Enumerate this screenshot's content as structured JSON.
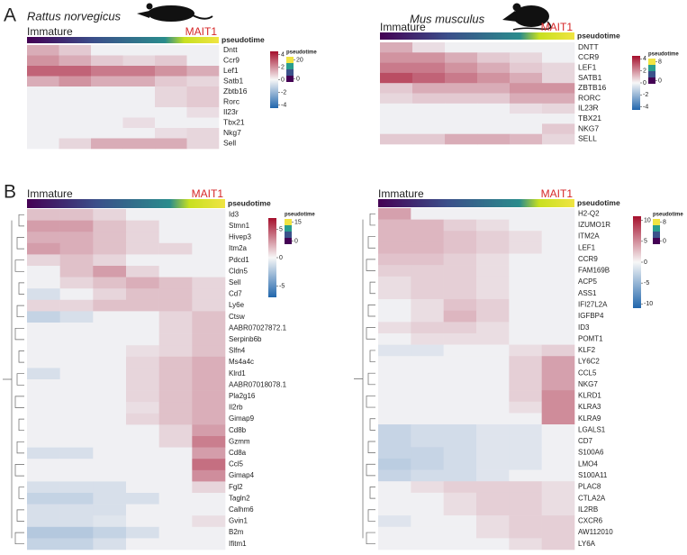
{
  "panel_labels": [
    "A",
    "B"
  ],
  "heatmaps": [
    {
      "species": "Rattus norvegicus",
      "start_label": "Immature",
      "end_label": "MAIT1",
      "pseudotime_label": "pseudotime",
      "genes": [
        "Dntt",
        "Ccr9",
        "Lef1",
        "Satb1",
        "Zbtb16",
        "Rorc",
        "Il23r",
        "Tbx21",
        "Nkg7",
        "Sell"
      ],
      "rows": [
        [
          1,
          0.5,
          0,
          0,
          0,
          0
        ],
        [
          1.5,
          1,
          0.5,
          0.3,
          0.5,
          0
        ],
        [
          2.5,
          2.5,
          2,
          2,
          1.5,
          1
        ],
        [
          1,
          1.5,
          1,
          1,
          0.5,
          0.3
        ],
        [
          0,
          0,
          0,
          0,
          0.3,
          0.5
        ],
        [
          0,
          0,
          0,
          0,
          0.3,
          0.5
        ],
        [
          0,
          0,
          0,
          0,
          0,
          0.2
        ],
        [
          0,
          0,
          0,
          0.2,
          0,
          0
        ],
        [
          0,
          0,
          0,
          0,
          0.2,
          0.3
        ],
        [
          0,
          0.3,
          1,
          1,
          1,
          0.3
        ]
      ],
      "colorbar": {
        "lim": [
          -4.5,
          4.5
        ],
        "ticks": [
          4,
          2,
          0,
          -2,
          -4
        ]
      },
      "pseudotime_legend": {
        "title": "pseudotime",
        "ticks": [
          20,
          0
        ]
      }
    },
    {
      "species": "Mus musculus",
      "start_label": "Immature",
      "end_label": "MAIT1",
      "pseudotime_label": "pseudotime",
      "genes": [
        "DNTT",
        "CCR9",
        "LEF1",
        "SATB1",
        "ZBTB16",
        "RORC",
        "IL23R",
        "TBX21",
        "NKG7",
        "SELL"
      ],
      "rows": [
        [
          1,
          0.2,
          0,
          0,
          0,
          0
        ],
        [
          1.5,
          1.5,
          1,
          0.5,
          0.3,
          0
        ],
        [
          2,
          2,
          1.5,
          1,
          0.5,
          0.3
        ],
        [
          3,
          2.5,
          2,
          1.5,
          1,
          0.3
        ],
        [
          0.5,
          1,
          1,
          1,
          1.5,
          1.5
        ],
        [
          0.3,
          0.5,
          0.5,
          0.5,
          1,
          1
        ],
        [
          0,
          0,
          0,
          0,
          0.2,
          0.3
        ],
        [
          0,
          0,
          0,
          0,
          0,
          0
        ],
        [
          0,
          0,
          0,
          0,
          0,
          0.5
        ],
        [
          0.5,
          0.5,
          1,
          1,
          0.8,
          0.3
        ]
      ],
      "colorbar": {
        "lim": [
          -4.5,
          4.5
        ],
        "ticks": [
          4,
          2,
          0,
          -2,
          -4
        ]
      },
      "pseudotime_legend": {
        "title": "pseudotime",
        "ticks": [
          8,
          0
        ]
      }
    },
    {
      "start_label": "Immature",
      "end_label": "MAIT1",
      "pseudotime_label": "pseudotime",
      "genes": [
        "Id3",
        "Stmn1",
        "Hivep3",
        "Itm2a",
        "Pdcd1",
        "Cldn5",
        "Sell",
        "Cd7",
        "Ly6e",
        "Ctsw",
        "AABR07027872.1",
        "Serpinb6b",
        "Slfn4",
        "Ms4a4c",
        "Klrd1",
        "AABR07018078.1",
        "Pla2g16",
        "Il2rb",
        "Gimap9",
        "Cd8b",
        "Gzmm",
        "Cd8a",
        "Ccl5",
        "Gimap4",
        "Fgl2",
        "Tagln2",
        "Calhm6",
        "Gvin1",
        "B2m",
        "Ifitm1"
      ],
      "rows": [
        [
          1,
          1,
          0.5,
          0,
          0,
          0
        ],
        [
          2,
          2,
          1,
          0.5,
          0,
          0
        ],
        [
          1.5,
          1.5,
          1,
          0.5,
          0,
          0
        ],
        [
          2,
          1.5,
          1,
          0.5,
          0.5,
          0
        ],
        [
          0.5,
          1,
          0.5,
          0,
          0,
          0
        ],
        [
          0,
          1,
          2,
          0.5,
          0,
          0
        ],
        [
          0,
          0.5,
          1,
          1.5,
          1,
          0.5
        ],
        [
          -0.5,
          0,
          0.5,
          1,
          1,
          0.5
        ],
        [
          0.5,
          0.5,
          1,
          1,
          1,
          0.5
        ],
        [
          -1,
          -0.5,
          0,
          0,
          0.5,
          1
        ],
        [
          0,
          0,
          0,
          0,
          0.5,
          1
        ],
        [
          0,
          0,
          0,
          0,
          0.5,
          1
        ],
        [
          0,
          0,
          0,
          0.3,
          0.5,
          1
        ],
        [
          0,
          0,
          0,
          0.5,
          1,
          1.5
        ],
        [
          -0.5,
          0,
          0,
          0.5,
          1,
          1.5
        ],
        [
          0,
          0,
          0,
          0.5,
          1,
          1.5
        ],
        [
          0,
          0,
          0,
          0.5,
          1,
          1.5
        ],
        [
          0,
          0,
          0,
          0.3,
          1,
          1.5
        ],
        [
          0,
          0,
          0,
          0.5,
          1,
          1.5
        ],
        [
          0,
          0,
          0,
          0,
          0.5,
          2
        ],
        [
          0,
          0,
          0,
          0,
          0.5,
          3
        ],
        [
          -0.5,
          -0.5,
          0,
          0,
          0,
          2
        ],
        [
          0,
          0,
          0,
          0,
          0,
          3.5
        ],
        [
          0,
          0,
          0,
          0,
          0,
          2.5
        ],
        [
          -0.5,
          -0.5,
          -0.5,
          0,
          0,
          0.5
        ],
        [
          -1,
          -1,
          -0.5,
          -0.5,
          0,
          0
        ],
        [
          -0.5,
          -0.5,
          -0.5,
          0,
          0,
          0
        ],
        [
          -0.5,
          -0.5,
          -0.3,
          0,
          0,
          0.3
        ],
        [
          -1.5,
          -1.5,
          -1,
          -0.5,
          0,
          0
        ],
        [
          -1,
          -1,
          -0.5,
          0,
          0,
          0
        ]
      ],
      "colorbar": {
        "lim": [
          -7,
          7
        ],
        "ticks": [
          5,
          0,
          -5
        ]
      },
      "pseudotime_legend": {
        "title": "pseudotime",
        "ticks": [
          15,
          0
        ]
      }
    },
    {
      "start_label": "Immature",
      "end_label": "MAIT1",
      "pseudotime_label": "pseudotime",
      "genes": [
        "H2-Q2",
        "IZUMO1R",
        "ITM2A",
        "LEF1",
        "CCR9",
        "FAM169B",
        "ACP5",
        "ASS1",
        "IFI27L2A",
        "IGFBP4",
        "ID3",
        "POMT1",
        "KLF2",
        "LY6C2",
        "CCL5",
        "NKG7",
        "KLRD1",
        "KLRA3",
        "KLRA9",
        "LGALS1",
        "CD7",
        "S100A6",
        "LMO4",
        "S100A11",
        "PLAC8",
        "CTLA2A",
        "IL2RB",
        "CXCR6",
        "AW112010",
        "LY6A"
      ],
      "rows": [
        [
          3,
          0,
          0,
          0,
          0,
          0
        ],
        [
          2,
          2,
          1,
          0.5,
          0,
          0
        ],
        [
          2,
          2,
          1.5,
          1,
          0.5,
          0
        ],
        [
          2,
          2,
          1.5,
          1,
          0.5,
          0
        ],
        [
          1.5,
          1.5,
          1,
          0.5,
          0,
          0
        ],
        [
          1,
          1,
          1,
          0.5,
          0,
          0
        ],
        [
          0.5,
          1,
          1,
          0.5,
          0,
          0
        ],
        [
          0.5,
          1,
          1,
          0.5,
          0,
          0
        ],
        [
          0,
          0.5,
          1.5,
          1,
          0,
          0
        ],
        [
          0,
          0.5,
          2,
          1,
          0,
          0
        ],
        [
          0.5,
          1,
          1,
          0.5,
          0,
          0
        ],
        [
          0,
          0.5,
          0.5,
          0.5,
          0,
          0
        ],
        [
          -0.5,
          -0.5,
          0,
          0,
          0.5,
          1
        ],
        [
          0,
          0,
          0,
          0,
          1,
          3
        ],
        [
          0,
          0,
          0,
          0,
          1,
          3
        ],
        [
          0,
          0,
          0,
          0,
          1,
          3
        ],
        [
          0,
          0,
          0,
          0,
          1,
          4
        ],
        [
          0,
          0,
          0,
          0,
          0.5,
          4
        ],
        [
          0,
          0,
          0,
          0,
          0,
          4
        ],
        [
          -1.5,
          -1,
          -1,
          -0.5,
          -0.5,
          0
        ],
        [
          -1.5,
          -1,
          -1,
          -0.5,
          -0.5,
          0
        ],
        [
          -1.5,
          -1.5,
          -1,
          -0.5,
          -0.5,
          0
        ],
        [
          -2,
          -1.5,
          -1,
          -0.5,
          -0.5,
          0
        ],
        [
          -1.5,
          -1,
          -1,
          -0.5,
          0,
          0
        ],
        [
          0,
          0.5,
          1,
          1,
          1,
          0.5
        ],
        [
          0,
          0,
          0.5,
          1,
          1,
          0.5
        ],
        [
          0,
          0,
          0.5,
          1,
          1,
          0.5
        ],
        [
          -0.5,
          0,
          0,
          0.5,
          1,
          1
        ],
        [
          0,
          0,
          0,
          0.5,
          1,
          1
        ],
        [
          0,
          0,
          0,
          0,
          0.5,
          1
        ]
      ],
      "colorbar": {
        "lim": [
          -11,
          11
        ],
        "ticks": [
          10,
          5,
          0,
          -5,
          -10
        ]
      },
      "pseudotime_legend": {
        "title": "pseudotime",
        "ticks": [
          8,
          0
        ]
      }
    }
  ]
}
